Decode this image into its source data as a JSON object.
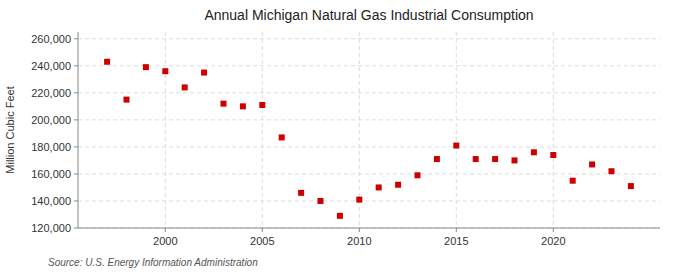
{
  "chart_data": {
    "type": "scatter",
    "title": "Annual Michigan Natural Gas Industrial Consumption",
    "y_label": "Million Cubic Feet",
    "source": "Source: U.S. Energy Information Administration",
    "color": "#cc0000",
    "marker": "square",
    "grid": true,
    "x": [
      1997,
      1998,
      1999,
      2000,
      2001,
      2002,
      2003,
      2004,
      2005,
      2006,
      2007,
      2008,
      2009,
      2010,
      2011,
      2012,
      2013,
      2014,
      2015,
      2016,
      2017,
      2018,
      2019,
      2020,
      2021,
      2022,
      2023,
      2024
    ],
    "values": [
      243000,
      215000,
      239000,
      236000,
      224000,
      235000,
      212000,
      210000,
      211000,
      187000,
      146000,
      140000,
      129000,
      141000,
      150000,
      152000,
      159000,
      171000,
      181000,
      171000,
      171000,
      170000,
      176000,
      174000,
      155000,
      167000,
      162000,
      151000
    ],
    "xlim": [
      1995.5,
      2025.5
    ],
    "ylim": [
      120000,
      265000
    ],
    "xticks": [
      2000,
      2005,
      2010,
      2015,
      2020
    ],
    "yticks": [
      {
        "value": 120000,
        "label": "120,000"
      },
      {
        "value": 140000,
        "label": "140,000"
      },
      {
        "value": 160000,
        "label": "160,000"
      },
      {
        "value": 180000,
        "label": "180,000"
      },
      {
        "value": 200000,
        "label": "200,000"
      },
      {
        "value": 220000,
        "label": "220,000"
      },
      {
        "value": 240000,
        "label": "240,000"
      },
      {
        "value": 260000,
        "label": "260,000"
      }
    ]
  }
}
